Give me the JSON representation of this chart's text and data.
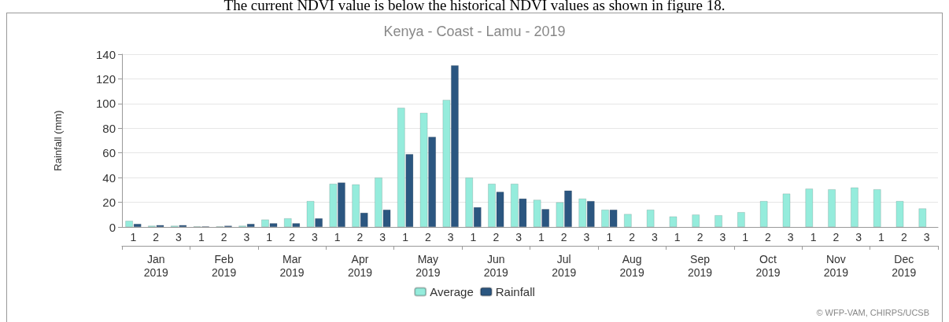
{
  "chart_data": {
    "type": "bar",
    "title": "Kenya - Coast - Lamu - 2019",
    "ylabel": "Rainfall (mm)",
    "categories": [
      "1",
      "2",
      "3",
      "1",
      "2",
      "3",
      "1",
      "2",
      "3",
      "1",
      "2",
      "3",
      "1",
      "2",
      "3",
      "1",
      "2",
      "3",
      "1",
      "2",
      "3",
      "1",
      "2",
      "3",
      "1",
      "2",
      "3",
      "1",
      "2",
      "3",
      "1",
      "2",
      "3",
      "1",
      "2",
      "3"
    ],
    "series": [
      {
        "name": "Average",
        "color": "#95ecdc",
        "values": [
          5,
          1,
          1,
          0.5,
          0.5,
          1,
          6,
          7,
          21,
          35,
          34.5,
          40,
          96.5,
          92.5,
          103,
          40,
          35,
          35,
          22,
          20,
          23,
          14,
          10.5,
          14,
          8.5,
          10,
          9.5,
          12,
          21,
          27,
          31,
          30.5,
          32,
          30.5,
          21,
          15
        ]
      },
      {
        "name": "Rainfall",
        "color": "#2b5680",
        "values": [
          2.5,
          1.5,
          1.5,
          0.5,
          1,
          2.5,
          3,
          3,
          7,
          36,
          11.5,
          14,
          59,
          73,
          131,
          16,
          28.5,
          23,
          14.5,
          29.5,
          21,
          14,
          null,
          null,
          null,
          null,
          null,
          null,
          null,
          null,
          null,
          null,
          null,
          null,
          null,
          null
        ]
      }
    ],
    "ylim": [
      0,
      140
    ],
    "yticks": [
      0,
      20,
      40,
      60,
      80,
      100,
      120,
      140
    ],
    "grid": "y",
    "legend": "bottom",
    "annotations": [
      "The current NDVI value is below the historical NDVI values as shown in figure 18.",
      "Jan\n2019",
      "Feb\n2019",
      "Mar\n2019",
      "Apr\n2019",
      "May\n2019",
      "Jun\n2019",
      "Jul\n2019",
      "Aug\n2019",
      "Sep\n2019",
      "Oct\n2019",
      "Nov\n2019",
      "Dec\n2019",
      "© WFP-VAM, CHIRPS/UCSB"
    ]
  }
}
